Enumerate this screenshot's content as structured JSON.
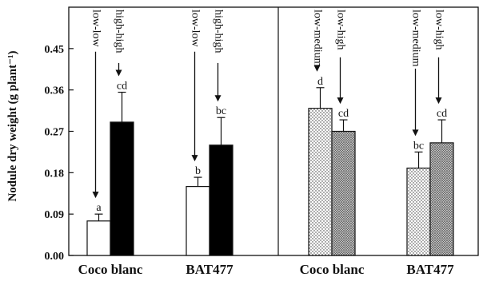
{
  "chart_data": {
    "type": "bar",
    "ylabel": "Nodule dry weight (g plant⁻¹)",
    "ylim": [
      0,
      0.54
    ],
    "yticks": [
      "0.00",
      "0.09",
      "0.18",
      "0.27",
      "0.36",
      "0.45"
    ],
    "grid": false,
    "panels": [
      {
        "categories": [
          "Coco blanc",
          "BAT477"
        ],
        "series": [
          {
            "name": "low-low",
            "fill": "white",
            "values": [
              0.075,
              0.15
            ],
            "errors": [
              0.015,
              0.02
            ]
          },
          {
            "name": "high-high",
            "fill": "black",
            "values": [
              0.29,
              0.24
            ],
            "errors": [
              0.065,
              0.06
            ]
          }
        ],
        "letters": [
          [
            "a",
            "b"
          ],
          [
            "cd",
            "bc"
          ]
        ],
        "annotations": [
          {
            "text": "low-low",
            "category": 0,
            "series": 0
          },
          {
            "text": "high-high",
            "category": 0,
            "series": 1
          },
          {
            "text": "low-low",
            "category": 1,
            "series": 0
          },
          {
            "text": "high-high",
            "category": 1,
            "series": 1
          }
        ]
      },
      {
        "categories": [
          "Coco blanc",
          "BAT477"
        ],
        "series": [
          {
            "name": "low-medium",
            "fill": "light-dotted",
            "values": [
              0.32,
              0.19
            ],
            "errors": [
              0.045,
              0.035
            ]
          },
          {
            "name": "low-high",
            "fill": "dark-dotted",
            "values": [
              0.27,
              0.245
            ],
            "errors": [
              0.025,
              0.05
            ]
          }
        ],
        "letters": [
          [
            "d",
            "bc"
          ],
          [
            "cd",
            "cd"
          ]
        ],
        "annotations": [
          {
            "text": "low-medium",
            "category": 0,
            "series": 0
          },
          {
            "text": "low-high",
            "category": 0,
            "series": 1
          },
          {
            "text": "low-medium",
            "category": 1,
            "series": 0
          },
          {
            "text": "low-high",
            "category": 1,
            "series": 1
          }
        ]
      }
    ]
  }
}
